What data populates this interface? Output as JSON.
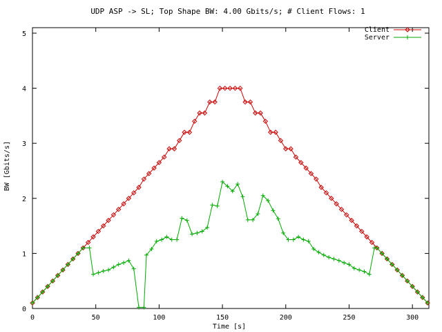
{
  "chart_data": {
    "type": "line",
    "title": "UDP ASP -> SL; Top Shape BW: 4.00 Gbits/s; # Client Flows: 1",
    "xlabel": "Time [s]",
    "ylabel": "BW [Gbits/s]",
    "xlim": [
      0,
      313
    ],
    "ylim": [
      0,
      5.1
    ],
    "xticks": [
      0,
      50,
      100,
      150,
      200,
      250,
      300
    ],
    "yticks": [
      0,
      1,
      2,
      3,
      4,
      5
    ],
    "grid": false,
    "legend": "top-right",
    "series": [
      {
        "name": "Client",
        "color": "#cc0000",
        "marker": "diamond",
        "points": [
          [
            0,
            0.1
          ],
          [
            4,
            0.2
          ],
          [
            8,
            0.3
          ],
          [
            12,
            0.4
          ],
          [
            16,
            0.5
          ],
          [
            20,
            0.6
          ],
          [
            24,
            0.7
          ],
          [
            28,
            0.8
          ],
          [
            32,
            0.9
          ],
          [
            36,
            1.0
          ],
          [
            40,
            1.1
          ],
          [
            44,
            1.2
          ],
          [
            48,
            1.3
          ],
          [
            52,
            1.4
          ],
          [
            56,
            1.5
          ],
          [
            60,
            1.6
          ],
          [
            64,
            1.7
          ],
          [
            68,
            1.8
          ],
          [
            72,
            1.9
          ],
          [
            76,
            2.0
          ],
          [
            80,
            2.1
          ],
          [
            84,
            2.2
          ],
          [
            88,
            2.35
          ],
          [
            92,
            2.45
          ],
          [
            96,
            2.55
          ],
          [
            100,
            2.65
          ],
          [
            104,
            2.75
          ],
          [
            108,
            2.9
          ],
          [
            112,
            2.9
          ],
          [
            116,
            3.05
          ],
          [
            120,
            3.2
          ],
          [
            124,
            3.2
          ],
          [
            128,
            3.4
          ],
          [
            132,
            3.55
          ],
          [
            136,
            3.55
          ],
          [
            140,
            3.75
          ],
          [
            144,
            3.75
          ],
          [
            148,
            4.0
          ],
          [
            152,
            4.0
          ],
          [
            156,
            4.0
          ],
          [
            160,
            4.0
          ],
          [
            164,
            4.0
          ],
          [
            168,
            3.75
          ],
          [
            172,
            3.75
          ],
          [
            176,
            3.55
          ],
          [
            180,
            3.55
          ],
          [
            184,
            3.4
          ],
          [
            188,
            3.2
          ],
          [
            192,
            3.2
          ],
          [
            196,
            3.05
          ],
          [
            200,
            2.9
          ],
          [
            204,
            2.9
          ],
          [
            208,
            2.75
          ],
          [
            212,
            2.65
          ],
          [
            216,
            2.55
          ],
          [
            220,
            2.45
          ],
          [
            224,
            2.35
          ],
          [
            228,
            2.2
          ],
          [
            232,
            2.1
          ],
          [
            236,
            2.0
          ],
          [
            240,
            1.9
          ],
          [
            244,
            1.8
          ],
          [
            248,
            1.7
          ],
          [
            252,
            1.6
          ],
          [
            256,
            1.5
          ],
          [
            260,
            1.4
          ],
          [
            264,
            1.3
          ],
          [
            268,
            1.2
          ],
          [
            272,
            1.1
          ],
          [
            276,
            1.0
          ],
          [
            280,
            0.9
          ],
          [
            284,
            0.8
          ],
          [
            288,
            0.7
          ],
          [
            292,
            0.6
          ],
          [
            296,
            0.5
          ],
          [
            300,
            0.4
          ],
          [
            304,
            0.3
          ],
          [
            308,
            0.2
          ],
          [
            312,
            0.1
          ]
        ]
      },
      {
        "name": "Server",
        "color": "#00aa00",
        "marker": "plus",
        "points": [
          [
            0,
            0.1
          ],
          [
            4,
            0.2
          ],
          [
            8,
            0.3
          ],
          [
            12,
            0.4
          ],
          [
            16,
            0.5
          ],
          [
            20,
            0.6
          ],
          [
            24,
            0.7
          ],
          [
            28,
            0.8
          ],
          [
            32,
            0.9
          ],
          [
            36,
            1.0
          ],
          [
            40,
            1.1
          ],
          [
            45,
            1.1
          ],
          [
            48,
            0.62
          ],
          [
            52,
            0.65
          ],
          [
            56,
            0.68
          ],
          [
            60,
            0.7
          ],
          [
            64,
            0.75
          ],
          [
            68,
            0.8
          ],
          [
            72,
            0.83
          ],
          [
            76,
            0.87
          ],
          [
            80,
            0.72
          ],
          [
            84,
            0.02
          ],
          [
            88,
            0.02
          ],
          [
            90,
            0.97
          ],
          [
            94,
            1.08
          ],
          [
            98,
            1.22
          ],
          [
            102,
            1.25
          ],
          [
            106,
            1.3
          ],
          [
            110,
            1.25
          ],
          [
            114,
            1.25
          ],
          [
            118,
            1.64
          ],
          [
            122,
            1.6
          ],
          [
            126,
            1.35
          ],
          [
            130,
            1.37
          ],
          [
            134,
            1.4
          ],
          [
            138,
            1.47
          ],
          [
            142,
            1.88
          ],
          [
            146,
            1.86
          ],
          [
            150,
            2.3
          ],
          [
            154,
            2.22
          ],
          [
            158,
            2.13
          ],
          [
            162,
            2.26
          ],
          [
            166,
            2.03
          ],
          [
            170,
            1.61
          ],
          [
            174,
            1.61
          ],
          [
            178,
            1.72
          ],
          [
            182,
            2.05
          ],
          [
            186,
            1.96
          ],
          [
            190,
            1.78
          ],
          [
            194,
            1.63
          ],
          [
            198,
            1.37
          ],
          [
            202,
            1.25
          ],
          [
            206,
            1.25
          ],
          [
            210,
            1.3
          ],
          [
            214,
            1.25
          ],
          [
            218,
            1.22
          ],
          [
            222,
            1.08
          ],
          [
            226,
            1.02
          ],
          [
            230,
            0.97
          ],
          [
            234,
            0.93
          ],
          [
            238,
            0.9
          ],
          [
            242,
            0.87
          ],
          [
            246,
            0.83
          ],
          [
            250,
            0.8
          ],
          [
            254,
            0.73
          ],
          [
            258,
            0.7
          ],
          [
            262,
            0.67
          ],
          [
            266,
            0.62
          ],
          [
            270,
            1.1
          ],
          [
            272,
            1.1
          ],
          [
            276,
            1.0
          ],
          [
            280,
            0.9
          ],
          [
            284,
            0.8
          ],
          [
            288,
            0.7
          ],
          [
            292,
            0.6
          ],
          [
            296,
            0.5
          ],
          [
            300,
            0.4
          ],
          [
            304,
            0.3
          ],
          [
            308,
            0.2
          ],
          [
            312,
            0.1
          ]
        ]
      }
    ]
  }
}
